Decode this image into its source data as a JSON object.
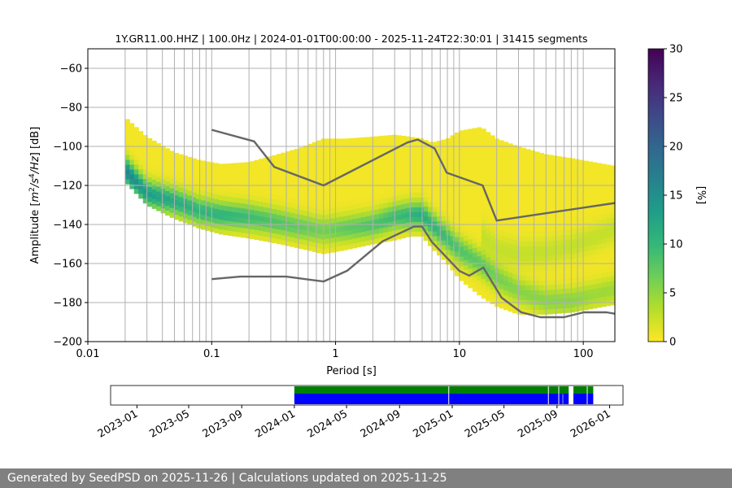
{
  "chart_data": [
    {
      "type": "heatmap",
      "title": "1Y.GR11.00.HHZ | 100.0Hz | 2024-01-01T00:00:00 - 2025-11-24T22:30:01 | 31415 segments",
      "xlabel": "Period [s]",
      "ylabel": "Amplitude [m²/s⁴/Hz] [dB]",
      "xscale": "log",
      "xlim": [
        0.01,
        180
      ],
      "ylim": [
        -200,
        -50
      ],
      "x_ticks": [
        0.01,
        0.1,
        1,
        10,
        100
      ],
      "x_tick_labels": [
        "0.01",
        "0.1",
        "1",
        "10",
        "100"
      ],
      "y_ticks": [
        -200,
        -180,
        -160,
        -140,
        -120,
        -100,
        -80,
        -60
      ],
      "y_tick_labels": [
        "−200",
        "−180",
        "−160",
        "−140",
        "−120",
        "−100",
        "−80",
        "−60"
      ],
      "grid": true,
      "colorbar": {
        "label": "[%]",
        "min": 0,
        "max": 30,
        "ticks": [
          0,
          5,
          10,
          15,
          20,
          25,
          30
        ],
        "tick_labels": [
          "0",
          "5",
          "10",
          "15",
          "20",
          "25",
          "30"
        ],
        "colormap": [
          "#fde725",
          "#b5de2b",
          "#6ece58",
          "#35b779",
          "#1f9e89",
          "#26828e",
          "#31688e",
          "#3e4989",
          "#482878",
          "#440154"
        ]
      },
      "band": {
        "periods": [
          0.02,
          0.03,
          0.05,
          0.08,
          0.12,
          0.2,
          0.3,
          0.5,
          0.8,
          1.2,
          2,
          3,
          4,
          5,
          6,
          8,
          10,
          15,
          20,
          30,
          50,
          80,
          120,
          180
        ],
        "upper": [
          -85,
          -95,
          -103,
          -107,
          -109,
          -108,
          -105,
          -101,
          -96,
          -96,
          -95,
          -94,
          -95,
          -96,
          -98,
          -96,
          -92,
          -90,
          -96,
          -100,
          -104,
          -106,
          -108,
          -110
        ],
        "lower": [
          -118,
          -130,
          -137,
          -142,
          -145,
          -147,
          -149,
          -152,
          -155,
          -153,
          -150,
          -148,
          -146,
          -146,
          -152,
          -160,
          -168,
          -177,
          -182,
          -186,
          -186,
          -185,
          -183,
          -181
        ],
        "mode": [
          -112,
          -124,
          -128,
          -133,
          -135,
          -136,
          -138,
          -141,
          -143,
          -142,
          -140,
          -136,
          -135,
          -135,
          -140,
          -147,
          -153,
          -160,
          -167,
          -174,
          -179,
          -179,
          -176,
          -173
        ],
        "max_percent": [
          16,
          13,
          11,
          10,
          10,
          9,
          8,
          7,
          6,
          7,
          8,
          9,
          10,
          11,
          10,
          9,
          8,
          7,
          6,
          5,
          5,
          5,
          4,
          4
        ],
        "secondary_mode": {
          "periods": [
            15,
            20,
            30,
            50,
            80,
            120,
            180
          ],
          "values": [
            -145,
            -152,
            -155,
            -154,
            -151,
            -147,
            -142
          ]
        }
      },
      "series": [
        {
          "name": "NHNM",
          "color": "#666666",
          "x": [
            0.1,
            0.22,
            0.32,
            0.8,
            3.8,
            4.6,
            6.3,
            7.9,
            15.4,
            20,
            180
          ],
          "y": [
            -91.5,
            -97.4,
            -110.5,
            -120,
            -98,
            -96.5,
            -101,
            -113.5,
            -120,
            -138,
            -129
          ]
        },
        {
          "name": "NLNM",
          "color": "#666666",
          "x": [
            0.1,
            0.17,
            0.4,
            0.8,
            1.24,
            2.4,
            4.3,
            5,
            6,
            10,
            12,
            15.6,
            21.9,
            31.6,
            45,
            70,
            101,
            154,
            180
          ],
          "y": [
            -168,
            -166.7,
            -166.7,
            -169.2,
            -163.7,
            -148.6,
            -141.1,
            -141.1,
            -149,
            -163.8,
            -166.2,
            -162.1,
            -177.5,
            -185,
            -187.5,
            -187.5,
            -185,
            -185,
            -185.7
          ]
        }
      ],
      "vertical_lines_periods": [
        0.02,
        0.03,
        0.04,
        0.05,
        0.06,
        0.07,
        0.08,
        0.09,
        0.1,
        0.2,
        0.3,
        0.4,
        0.5,
        0.6,
        0.7,
        0.8,
        0.9,
        1,
        2,
        3,
        4,
        5,
        6,
        7,
        8,
        9,
        10,
        20,
        30,
        40,
        50,
        60,
        70,
        80,
        90,
        100
      ]
    },
    {
      "type": "timeline",
      "date_ticks": [
        "2023-01",
        "2023-05",
        "2023-09",
        "2024-01",
        "2024-05",
        "2024-09",
        "2025-01",
        "2025-05",
        "2025-09",
        "2026-01"
      ],
      "range": [
        "2022-11",
        "2026-02"
      ],
      "tracks": [
        {
          "name": "data_available",
          "color": "#008000",
          "segments": [
            [
              "2024-01-01",
              "2025-09-28"
            ],
            [
              "2025-10-09",
              "2025-11-24"
            ]
          ]
        },
        {
          "name": "psd_computed",
          "color": "#0000ff",
          "segments": [
            [
              "2024-01-01",
              "2025-09-14"
            ],
            [
              "2025-09-15",
              "2025-09-28"
            ],
            [
              "2025-10-09",
              "2025-11-24"
            ]
          ]
        }
      ],
      "gaps": [
        "2024-12-24",
        "2025-08-12",
        "2025-09-05",
        "2025-11-10"
      ]
    }
  ],
  "footer": {
    "text": "Generated by SeedPSD on 2025-11-26 | Calculations updated on 2025-11-25"
  }
}
